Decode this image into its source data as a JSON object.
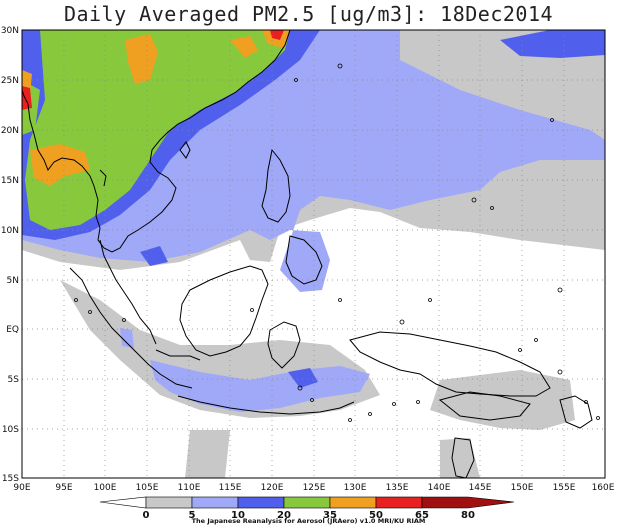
{
  "title": "Daily Averaged PM2.5 [ug/m3]: 18Dec2014",
  "map": {
    "lat_labels": [
      "30N",
      "25N",
      "20N",
      "15N",
      "10N",
      "5N",
      "EQ",
      "5S",
      "10S",
      "15S"
    ],
    "lon_labels": [
      "90E",
      "95E",
      "100E",
      "105E",
      "110E",
      "115E",
      "120E",
      "125E",
      "130E",
      "135E",
      "140E",
      "145E",
      "150E",
      "155E",
      "160E"
    ],
    "lon_range": [
      90,
      160
    ],
    "lat_range": [
      -15,
      30
    ],
    "grid": "dotted"
  },
  "colorbar": {
    "levels": [
      "0",
      "5",
      "10",
      "20",
      "35",
      "50",
      "65",
      "80"
    ],
    "colors": [
      "#ffffff",
      "#c8c8c8",
      "#a0a8f8",
      "#5060ec",
      "#88c83c",
      "#f0a020",
      "#e82020",
      "#a01010"
    ]
  },
  "credit": "The Japanese Reanalysis for Aerosol (JRAero) v1.0 MRI/KU RIAM"
}
